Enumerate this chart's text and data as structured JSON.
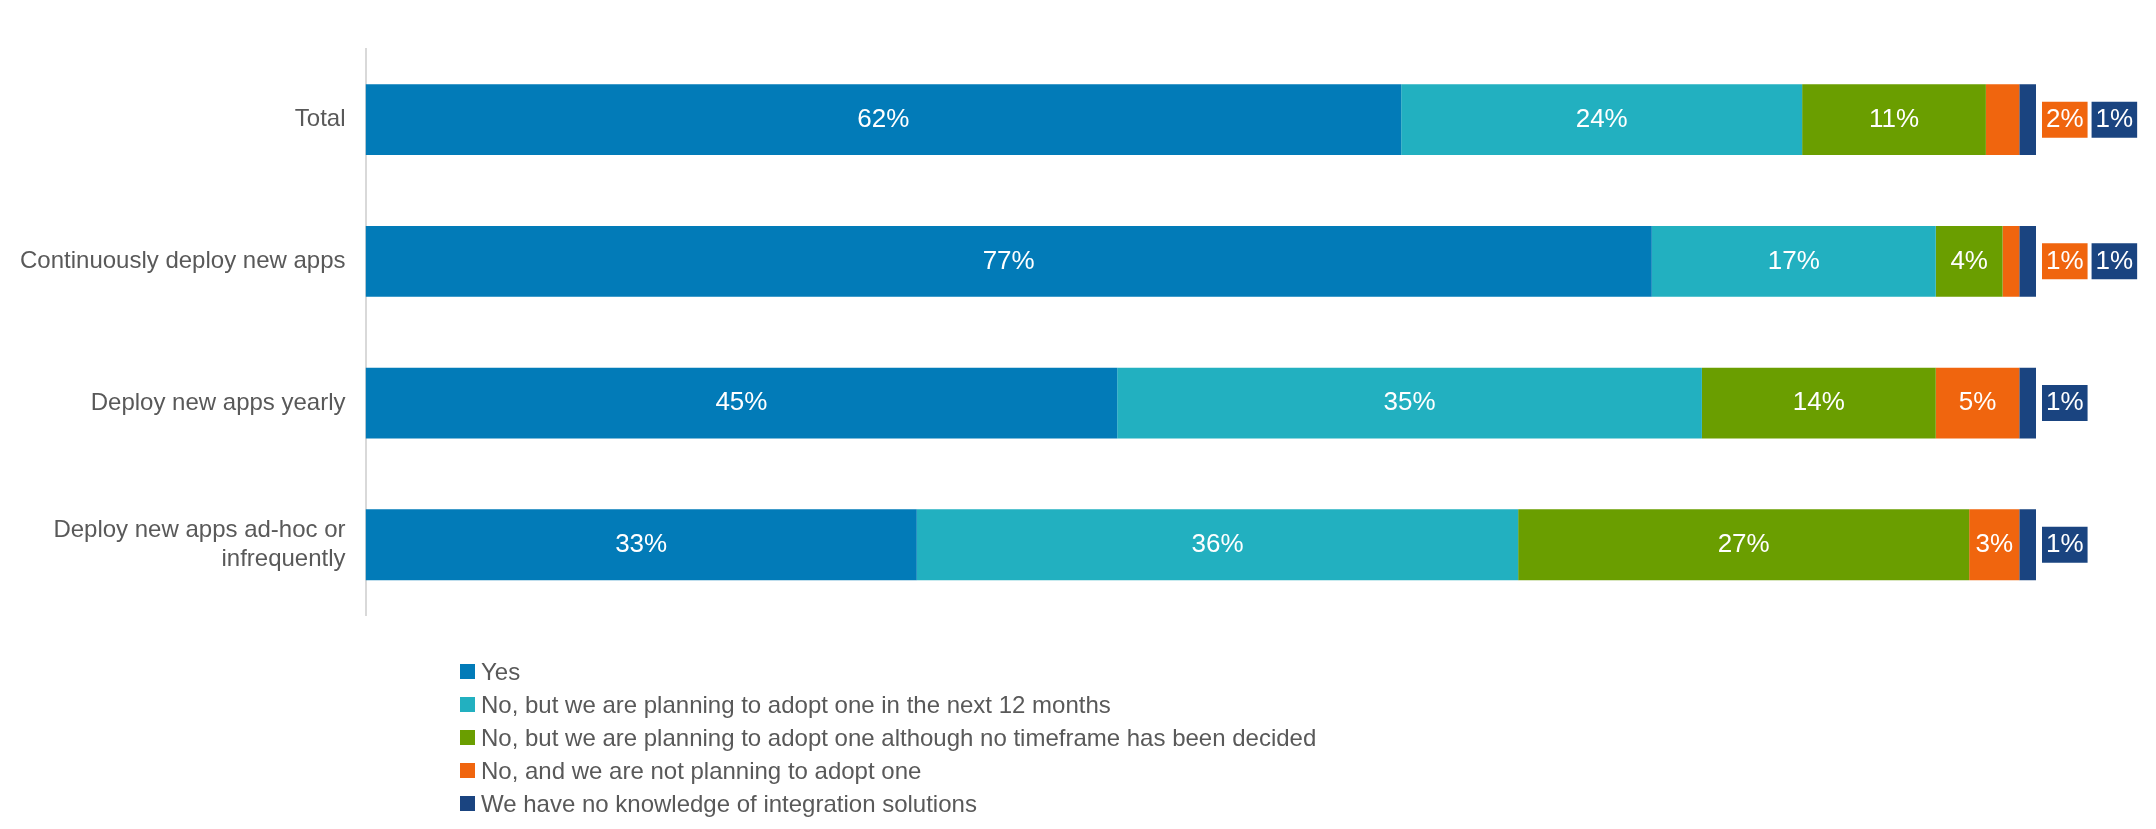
{
  "chart_data": {
    "type": "bar",
    "orientation": "horizontal",
    "stacked": true,
    "grid": false,
    "legend": "bottom",
    "tick_labels": "y",
    "categories": [
      "Total",
      "Continuously deploy new apps",
      "Deploy new apps yearly",
      "Deploy new apps ad-hoc or infrequently"
    ],
    "series": [
      {
        "name": "Yes",
        "color": "#027bb8",
        "values": [
          62,
          77,
          45,
          33
        ],
        "value_labels": [
          "62%",
          "77%",
          "45%",
          "33%"
        ]
      },
      {
        "name": "No, but we are planning to adopt one in the next 12 months",
        "color": "#22b0c0",
        "values": [
          24,
          17,
          35,
          36
        ],
        "value_labels": [
          "24%",
          "17%",
          "35%",
          "36%"
        ]
      },
      {
        "name": "No, but we are planning to adopt one although no timeframe has been decided",
        "color": "#6a9e00",
        "values": [
          11,
          4,
          14,
          27
        ],
        "value_labels": [
          "11%",
          "4%",
          "14%",
          "27%"
        ]
      },
      {
        "name": "No, and we are not planning to adopt one",
        "color": "#f0650e",
        "values": [
          2,
          1,
          5,
          3
        ],
        "value_labels": [
          "2%",
          "1%",
          "5%",
          "3%"
        ]
      },
      {
        "name": "We have no knowledge of integration solutions",
        "color": "#1a4480",
        "values": [
          1,
          1,
          1,
          1
        ],
        "value_labels": [
          "1%",
          "1%",
          "1%",
          "1%"
        ]
      }
    ]
  }
}
